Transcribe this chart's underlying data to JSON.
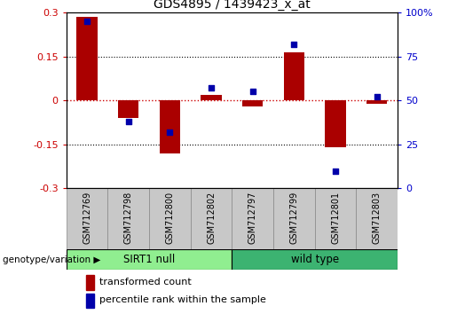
{
  "title": "GDS4895 / 1439423_x_at",
  "samples": [
    "GSM712769",
    "GSM712798",
    "GSM712800",
    "GSM712802",
    "GSM712797",
    "GSM712799",
    "GSM712801",
    "GSM712803"
  ],
  "transformed_count": [
    0.285,
    -0.06,
    -0.18,
    0.02,
    -0.02,
    0.165,
    -0.16,
    -0.01
  ],
  "percentile_rank_raw": [
    95,
    38,
    32,
    57,
    55,
    82,
    10,
    52
  ],
  "ylim_left": [
    -0.3,
    0.3
  ],
  "ylim_right": [
    0,
    100
  ],
  "yticks_left": [
    -0.3,
    -0.15,
    0,
    0.15,
    0.3
  ],
  "yticks_right": [
    0,
    25,
    50,
    75,
    100
  ],
  "groups": [
    {
      "label": "SIRT1 null",
      "start": 0,
      "end": 4,
      "color": "#90EE90"
    },
    {
      "label": "wild type",
      "start": 4,
      "end": 8,
      "color": "#3CB371"
    }
  ],
  "group_label": "genotype/variation",
  "bar_color": "#AA0000",
  "dot_color": "#0000AA",
  "legend_bar_label": "transformed count",
  "legend_dot_label": "percentile rank within the sample",
  "zero_line_color": "#CC0000",
  "left_tick_color": "#CC0000",
  "right_tick_color": "#0000CC",
  "bar_width": 0.5,
  "dot_size": 22,
  "sample_box_color": "#C8C8C8",
  "sample_box_edge": "#888888"
}
